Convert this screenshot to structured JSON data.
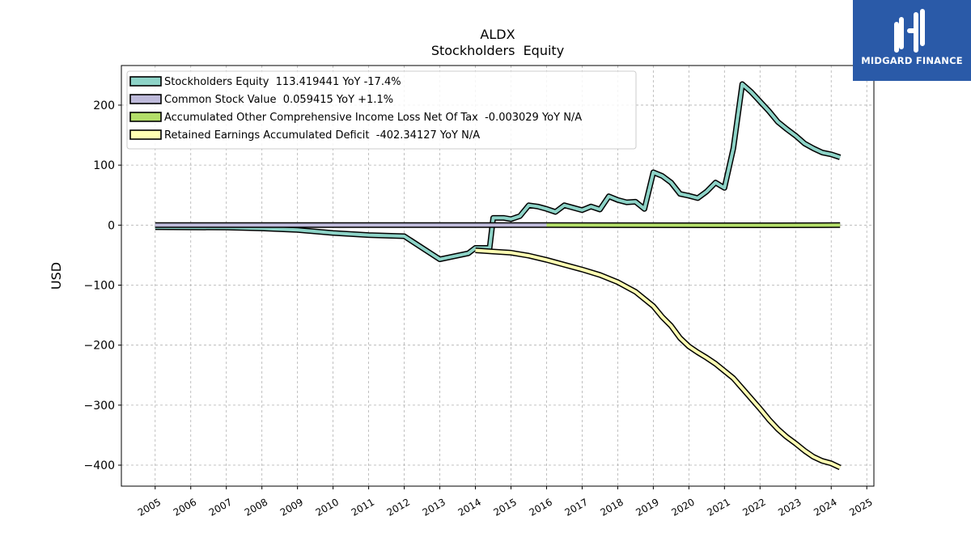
{
  "brand": {
    "name": "MIDGARD FINANCE",
    "bg_color": "#2a5aa8"
  },
  "chart_data": {
    "type": "line",
    "title": "ALDX",
    "subtitle": "Stockholders  Equity",
    "ylabel": "USD",
    "xlabel": "",
    "x_ticks": [
      "2005",
      "2006",
      "2007",
      "2008",
      "2009",
      "2010",
      "2011",
      "2012",
      "2013",
      "2014",
      "2015",
      "2016",
      "2017",
      "2018",
      "2019",
      "2020",
      "2021",
      "2022",
      "2023",
      "2024",
      "2025"
    ],
    "y_ticks": [
      200,
      100,
      0,
      -100,
      -200,
      -300,
      -400
    ],
    "y_tick_labels": [
      "200",
      "100",
      "0",
      "−100",
      "−200",
      "−300",
      "−400"
    ],
    "xlim": [
      2004.05,
      2025.2
    ],
    "ylim": [
      -435,
      266
    ],
    "grid": true,
    "legend_position": "top-left",
    "series": [
      {
        "name": "Stockholders Equity  113.419441 YoY -17.4%",
        "color": "#8dd3c7",
        "points": [
          [
            2005.0,
            -3.5
          ],
          [
            2007.0,
            -4.0
          ],
          [
            2008.0,
            -5.5
          ],
          [
            2009.0,
            -8.0
          ],
          [
            2010.0,
            -13.0
          ],
          [
            2011.0,
            -16.5
          ],
          [
            2012.0,
            -18.5
          ],
          [
            2013.0,
            -57.0
          ],
          [
            2013.8,
            -47.0
          ],
          [
            2014.0,
            -38.0
          ],
          [
            2014.4,
            -38.0
          ],
          [
            2014.5,
            12.0
          ],
          [
            2014.8,
            12.0
          ],
          [
            2015.0,
            10.0
          ],
          [
            2015.25,
            15.0
          ],
          [
            2015.5,
            33.0
          ],
          [
            2015.75,
            31.0
          ],
          [
            2016.0,
            27.0
          ],
          [
            2016.25,
            22.0
          ],
          [
            2016.5,
            33.0
          ],
          [
            2016.75,
            29.0
          ],
          [
            2017.0,
            25.0
          ],
          [
            2017.25,
            31.0
          ],
          [
            2017.5,
            26.0
          ],
          [
            2017.75,
            48.0
          ],
          [
            2018.0,
            42.0
          ],
          [
            2018.25,
            38.0
          ],
          [
            2018.5,
            39.0
          ],
          [
            2018.75,
            27.0
          ],
          [
            2019.0,
            88.0
          ],
          [
            2019.25,
            82.0
          ],
          [
            2019.5,
            71.0
          ],
          [
            2019.75,
            52.0
          ],
          [
            2020.0,
            49.0
          ],
          [
            2020.25,
            45.0
          ],
          [
            2020.5,
            56.0
          ],
          [
            2020.75,
            71.0
          ],
          [
            2021.0,
            62.0
          ],
          [
            2021.25,
            128.0
          ],
          [
            2021.5,
            235.0
          ],
          [
            2021.75,
            222.0
          ],
          [
            2022.0,
            206.0
          ],
          [
            2022.25,
            190.0
          ],
          [
            2022.5,
            172.0
          ],
          [
            2022.75,
            160.0
          ],
          [
            2023.0,
            149.0
          ],
          [
            2023.25,
            136.0
          ],
          [
            2023.5,
            128.0
          ],
          [
            2023.75,
            121.0
          ],
          [
            2024.0,
            118.0
          ],
          [
            2024.25,
            113.0
          ]
        ]
      },
      {
        "name": "Common Stock Value  0.059415 YoY +1.1%",
        "color": "#bebada",
        "points": [
          [
            2005.0,
            0.06
          ],
          [
            2016.0,
            0.06
          ]
        ]
      },
      {
        "name": "Accumulated Other Comprehensive Income Loss Net Of Tax  -0.003029 YoY N/A",
        "color": "#b3de69",
        "points": [
          [
            2016.0,
            0.0
          ],
          [
            2022.5,
            -0.3
          ],
          [
            2024.25,
            -0.003
          ]
        ]
      },
      {
        "name": "Retained Earnings Accumulated Deficit  -402.34127 YoY N/A",
        "color": "#ffffb3",
        "points": [
          [
            2014.0,
            -42.0
          ],
          [
            2014.5,
            -44.0
          ],
          [
            2015.0,
            -46.0
          ],
          [
            2015.5,
            -51.0
          ],
          [
            2016.0,
            -58.0
          ],
          [
            2016.5,
            -66.0
          ],
          [
            2017.0,
            -74.0
          ],
          [
            2017.5,
            -83.0
          ],
          [
            2018.0,
            -95.0
          ],
          [
            2018.5,
            -111.0
          ],
          [
            2019.0,
            -135.0
          ],
          [
            2019.25,
            -153.0
          ],
          [
            2019.5,
            -168.0
          ],
          [
            2019.75,
            -188.0
          ],
          [
            2020.0,
            -202.0
          ],
          [
            2020.25,
            -212.0
          ],
          [
            2020.5,
            -221.0
          ],
          [
            2020.75,
            -231.0
          ],
          [
            2021.0,
            -243.0
          ],
          [
            2021.25,
            -255.0
          ],
          [
            2021.5,
            -272.0
          ],
          [
            2021.75,
            -289.0
          ],
          [
            2022.0,
            -306.0
          ],
          [
            2022.25,
            -324.0
          ],
          [
            2022.5,
            -340.0
          ],
          [
            2022.75,
            -353.0
          ],
          [
            2023.0,
            -364.0
          ],
          [
            2023.25,
            -376.0
          ],
          [
            2023.5,
            -386.0
          ],
          [
            2023.75,
            -393.0
          ],
          [
            2024.0,
            -397.0
          ],
          [
            2024.25,
            -404.0
          ]
        ]
      }
    ]
  }
}
